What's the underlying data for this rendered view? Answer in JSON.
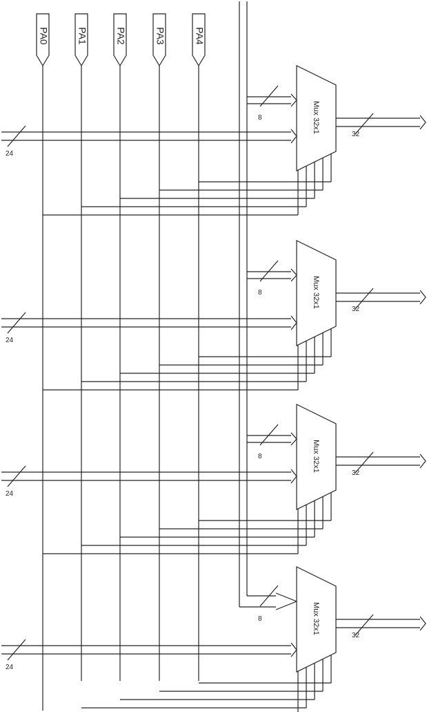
{
  "pins": [
    {
      "label": "PA0"
    },
    {
      "label": "PA1"
    },
    {
      "label": "PA2"
    },
    {
      "label": "PA3"
    },
    {
      "label": "PA4"
    }
  ],
  "muxes": [
    {
      "label": "Mux 32x1",
      "in_upper_width": "8",
      "in_lower_width": "24",
      "out_width": "32"
    },
    {
      "label": "Mux 32x1",
      "in_upper_width": "8",
      "in_lower_width": "24",
      "out_width": "32"
    },
    {
      "label": "Mux 32x1",
      "in_upper_width": "8",
      "in_lower_width": "24",
      "out_width": "32"
    },
    {
      "label": "Mux 32x1",
      "in_upper_width": "8",
      "in_lower_width": "24",
      "out_width": "32"
    }
  ],
  "colors": {
    "line": "#222222",
    "background": "#ffffff"
  }
}
